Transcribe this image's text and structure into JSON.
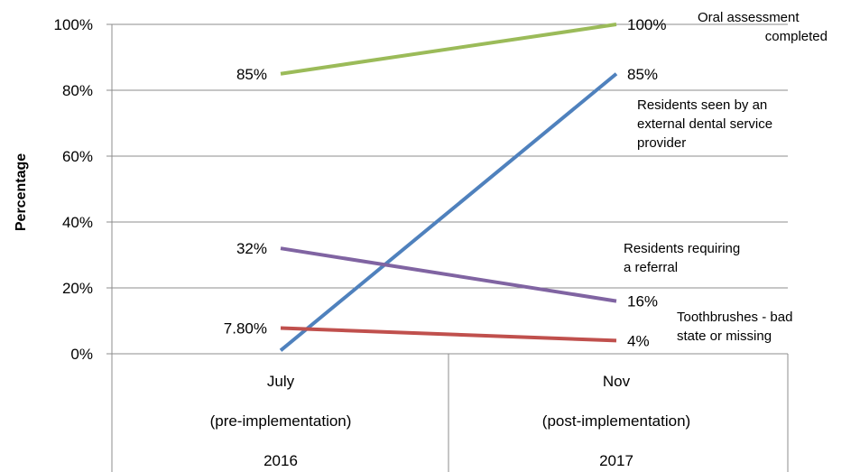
{
  "chart_data": {
    "type": "line",
    "categories": [
      [
        "July",
        "(pre-implementation)",
        "2016"
      ],
      [
        "Nov",
        "(post-implementation)",
        "2017"
      ]
    ],
    "ylabel": "Percentage",
    "xlabel": "",
    "ylim": [
      0,
      100
    ],
    "yticks": [
      0,
      20,
      40,
      60,
      80,
      100
    ],
    "ytick_labels": [
      "0%",
      "20%",
      "40%",
      "60%",
      "80%",
      "100%"
    ],
    "grid": true,
    "series": [
      {
        "name": "Oral assessment completed",
        "name_lines": [
          "Oral assessment",
          "completed"
        ],
        "values": [
          85,
          100
        ],
        "labels": [
          "85%",
          "100%"
        ],
        "color": "#9BBB59"
      },
      {
        "name": "Residents seen by an external dental service provider",
        "name_lines": [
          "Residents seen by an",
          "external dental service",
          "provider"
        ],
        "values": [
          1,
          85
        ],
        "labels": [
          "",
          "85%"
        ],
        "color": "#4F81BD"
      },
      {
        "name": "Residents requiring a referral",
        "name_lines": [
          "Residents requiring",
          "a referral"
        ],
        "values": [
          32,
          16
        ],
        "labels": [
          "32%",
          "16%"
        ],
        "color": "#8064A2"
      },
      {
        "name": "Toothbrushes - bad state or missing",
        "name_lines": [
          "Toothbrushes - bad",
          "state or missing"
        ],
        "values": [
          7.8,
          4
        ],
        "labels": [
          "7.80%",
          "4%"
        ],
        "color": "#C0504D"
      }
    ]
  }
}
